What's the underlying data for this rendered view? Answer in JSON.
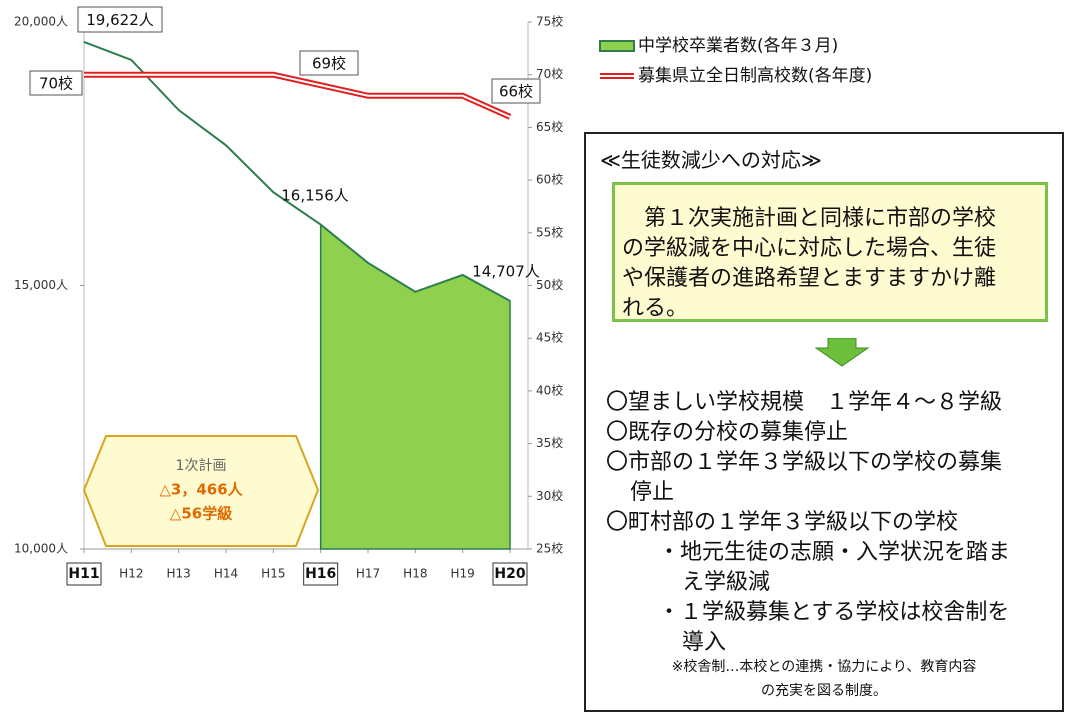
{
  "chart_data": {
    "type": "line",
    "categories": [
      "H11",
      "H12",
      "H13",
      "H14",
      "H15",
      "H16",
      "H17",
      "H18",
      "H19",
      "H20"
    ],
    "series": [
      {
        "name": "中学校卒業者数(各年３月)",
        "color": "#2e7d4f",
        "fill": "#8fd14f",
        "values": [
          19622,
          19280,
          18330,
          17660,
          16770,
          16156,
          15430,
          14880,
          15200,
          14707
        ],
        "value_labels": [
          "19,622人",
          null,
          null,
          null,
          null,
          "16,156人",
          null,
          null,
          null,
          "14,707人"
        ]
      },
      {
        "name": "募集県立全日制高校数(各年度)",
        "color": "#e02020",
        "axis": "y2",
        "values": [
          70,
          70,
          70,
          70,
          70,
          69,
          68,
          68,
          68,
          66
        ],
        "value_labels": [
          "70校",
          null,
          null,
          null,
          null,
          "69校",
          null,
          null,
          null,
          "66校"
        ]
      }
    ],
    "ylim": [
      10000,
      20000
    ],
    "yticks": [
      {
        "value": 10000,
        "label": "10,000人"
      },
      {
        "value": 15000,
        "label": "15,000人"
      },
      {
        "value": 20000,
        "label": "20,000人"
      }
    ],
    "y2lim": [
      25,
      75
    ],
    "y2ticks": [
      {
        "value": 25,
        "label": "25校"
      },
      {
        "value": 30,
        "label": "30校"
      },
      {
        "value": 35,
        "label": "35校"
      },
      {
        "value": 40,
        "label": "40校"
      },
      {
        "value": 45,
        "label": "45校"
      },
      {
        "value": 50,
        "label": "50校"
      },
      {
        "value": 55,
        "label": "55校"
      },
      {
        "value": 60,
        "label": "60校"
      },
      {
        "value": 65,
        "label": "65校"
      },
      {
        "value": 70,
        "label": "70校"
      },
      {
        "value": 75,
        "label": "75校"
      }
    ],
    "annotation": [
      "1次計画",
      "△3，466人",
      "△56学級"
    ]
  },
  "panel": {
    "title": "≪生徒数減少への対応≫",
    "box_lines": [
      "　第１次実施計画と同様に市部の学校",
      "の学級減を中心に対応した場合、生徒",
      "や保護者の進路希望とますますかけ離",
      "れる。"
    ],
    "list": [
      {
        "lines": [
          "〇望ましい学校規模　１学年４～８学級"
        ]
      },
      {
        "lines": [
          "〇既存の分校の募集停止"
        ]
      },
      {
        "lines": [
          "〇市部の１学年３学級以下の学校の募集",
          "停止"
        ]
      },
      {
        "lines": [
          "〇町村部の１学年３学級以下の学校"
        ],
        "sub": [
          {
            "lines": [
              "・地元生徒の志願・入学状況を踏ま",
              "え学級減"
            ]
          },
          {
            "lines": [
              "・１学級募集とする学校は校舎制を",
              "導入"
            ]
          }
        ]
      }
    ],
    "note_lines": [
      "※校舎制…本校との連携・協力により、教育内容",
      "の充実を図る制度。"
    ]
  }
}
